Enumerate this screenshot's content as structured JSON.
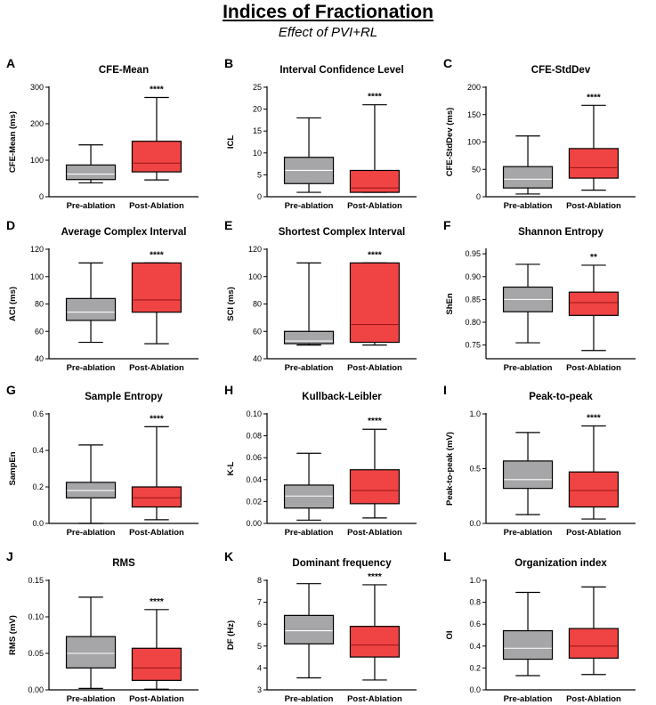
{
  "title": "Indices of Fractionation",
  "subtitle": "Effect of PVI+RL",
  "colors": {
    "pre": "#a6a6a8",
    "post": "#f04444",
    "median_pre": "#ffffff",
    "median_post": "#a01818",
    "line": "#000000"
  },
  "chart_data": [
    {
      "letter": "A",
      "type": "box",
      "title": "CFE-Mean",
      "ylabel": "CFE-Mean (ms)",
      "ylim": [
        0,
        300
      ],
      "ticks": [
        0,
        100,
        200,
        300
      ],
      "tick_labels": [
        "0",
        "100",
        "200",
        "300"
      ],
      "categories": [
        "Pre-ablation",
        "Post-Ablation"
      ],
      "significance": "****",
      "series": [
        {
          "name": "Pre-ablation",
          "min": 38,
          "q1": 47,
          "median": 62,
          "q3": 87,
          "max": 142
        },
        {
          "name": "Post-Ablation",
          "min": 46,
          "q1": 68,
          "median": 92,
          "q3": 152,
          "max": 272
        }
      ]
    },
    {
      "letter": "B",
      "type": "box",
      "title": "Interval Confidence Level",
      "ylabel": "ICL",
      "ylim": [
        0,
        25
      ],
      "ticks": [
        0,
        5,
        10,
        15,
        20,
        25
      ],
      "tick_labels": [
        "0",
        "5",
        "10",
        "15",
        "20",
        "25"
      ],
      "categories": [
        "Pre-ablation",
        "Post-Ablation"
      ],
      "significance": "****",
      "series": [
        {
          "name": "Pre-ablation",
          "min": 1,
          "q1": 3,
          "median": 6,
          "q3": 9,
          "max": 18
        },
        {
          "name": "Post-Ablation",
          "min": 1,
          "q1": 1,
          "median": 2,
          "q3": 6,
          "max": 21
        }
      ]
    },
    {
      "letter": "C",
      "type": "box",
      "title": "CFE-StdDev",
      "ylabel": "CFE-StdDev (ms)",
      "ylim": [
        0,
        200
      ],
      "ticks": [
        0,
        50,
        100,
        150,
        200
      ],
      "tick_labels": [
        "0",
        "50",
        "100",
        "150",
        "200"
      ],
      "categories": [
        "Pre-ablation",
        "Post-Ablation"
      ],
      "significance": "****",
      "series": [
        {
          "name": "Pre-ablation",
          "min": 5,
          "q1": 16,
          "median": 32,
          "q3": 55,
          "max": 111
        },
        {
          "name": "Post-Ablation",
          "min": 12,
          "q1": 34,
          "median": 53,
          "q3": 88,
          "max": 167
        }
      ]
    },
    {
      "letter": "D",
      "type": "box",
      "title": "Average Complex Interval",
      "ylabel": "ACI (ms)",
      "ylim": [
        40,
        120
      ],
      "ticks": [
        40,
        60,
        80,
        100,
        120
      ],
      "tick_labels": [
        "40",
        "60",
        "80",
        "100",
        "120"
      ],
      "categories": [
        "Pre-ablation",
        "Post-Ablation"
      ],
      "significance": "****",
      "series": [
        {
          "name": "Pre-ablation",
          "min": 52,
          "q1": 68,
          "median": 74,
          "q3": 84,
          "max": 110
        },
        {
          "name": "Post-Ablation",
          "min": 51,
          "q1": 74,
          "median": 83,
          "q3": 110,
          "max": 110
        }
      ]
    },
    {
      "letter": "E",
      "type": "box",
      "title": "Shortest Complex Interval",
      "ylabel": "SCI (ms)",
      "ylim": [
        40,
        120
      ],
      "ticks": [
        40,
        60,
        80,
        100,
        120
      ],
      "tick_labels": [
        "40",
        "60",
        "80",
        "100",
        "120"
      ],
      "categories": [
        "Pre-ablation",
        "Post-Ablation"
      ],
      "significance": "****",
      "series": [
        {
          "name": "Pre-ablation",
          "min": 50,
          "q1": 51,
          "median": 53,
          "q3": 60,
          "max": 110
        },
        {
          "name": "Post-Ablation",
          "min": 50,
          "q1": 52,
          "median": 65,
          "q3": 110,
          "max": 110
        }
      ]
    },
    {
      "letter": "F",
      "type": "box",
      "title": "Shannon Entropy",
      "ylabel": "ShEn",
      "ylim": [
        0.72,
        0.96
      ],
      "ticks": [
        0.75,
        0.8,
        0.85,
        0.9,
        0.95
      ],
      "tick_labels": [
        "0.75",
        "0.80",
        "0.85",
        "0.90",
        "0.95"
      ],
      "categories": [
        "Pre-ablation",
        "Post-Ablation"
      ],
      "significance": "**",
      "series": [
        {
          "name": "Pre-ablation",
          "min": 0.755,
          "q1": 0.823,
          "median": 0.85,
          "q3": 0.877,
          "max": 0.927
        },
        {
          "name": "Post-Ablation",
          "min": 0.738,
          "q1": 0.815,
          "median": 0.843,
          "q3": 0.866,
          "max": 0.925
        }
      ]
    },
    {
      "letter": "G",
      "type": "box",
      "title": "Sample Entropy",
      "ylabel": "SampEn",
      "ylim": [
        0,
        0.6
      ],
      "ticks": [
        0,
        0.2,
        0.4,
        0.6
      ],
      "tick_labels": [
        "0.0",
        "0.2",
        "0.4",
        "0.6"
      ],
      "categories": [
        "Pre-ablation",
        "Post-Ablation"
      ],
      "significance": "****",
      "series": [
        {
          "name": "Pre-ablation",
          "min": 0.0,
          "q1": 0.14,
          "median": 0.18,
          "q3": 0.225,
          "max": 0.43
        },
        {
          "name": "Post-Ablation",
          "min": 0.02,
          "q1": 0.09,
          "median": 0.14,
          "q3": 0.2,
          "max": 0.53
        }
      ]
    },
    {
      "letter": "H",
      "type": "box",
      "title": "Kullback-Leibler",
      "ylabel": "K-L",
      "ylim": [
        0,
        0.1
      ],
      "ticks": [
        0,
        0.02,
        0.04,
        0.06,
        0.08,
        0.1
      ],
      "tick_labels": [
        "0.00",
        "0.02",
        "0.04",
        "0.06",
        "0.08",
        "0.10"
      ],
      "categories": [
        "Pre-ablation",
        "Post-Ablation"
      ],
      "significance": "****",
      "series": [
        {
          "name": "Pre-ablation",
          "min": 0.003,
          "q1": 0.014,
          "median": 0.025,
          "q3": 0.035,
          "max": 0.064
        },
        {
          "name": "Post-Ablation",
          "min": 0.005,
          "q1": 0.018,
          "median": 0.03,
          "q3": 0.049,
          "max": 0.086
        }
      ]
    },
    {
      "letter": "I",
      "type": "box",
      "title": "Peak-to-peak",
      "ylabel": "Peak-to-peak (mV)",
      "ylim": [
        0,
        1.0
      ],
      "ticks": [
        0,
        0.5,
        1.0
      ],
      "tick_labels": [
        "0.0",
        "0.5",
        "1.0"
      ],
      "categories": [
        "Pre-ablation",
        "Post-Ablation"
      ],
      "significance": "****",
      "series": [
        {
          "name": "Pre-ablation",
          "min": 0.08,
          "q1": 0.32,
          "median": 0.4,
          "q3": 0.57,
          "max": 0.83
        },
        {
          "name": "Post-Ablation",
          "min": 0.04,
          "q1": 0.15,
          "median": 0.3,
          "q3": 0.47,
          "max": 0.89
        }
      ]
    },
    {
      "letter": "J",
      "type": "box",
      "title": "RMS",
      "ylabel": "RMS (mV)",
      "ylim": [
        0,
        0.15
      ],
      "ticks": [
        0,
        0.05,
        0.1,
        0.15
      ],
      "tick_labels": [
        "0.00",
        "0.05",
        "0.10",
        "0.15"
      ],
      "categories": [
        "Pre-ablation",
        "Post-Ablation"
      ],
      "significance": "****",
      "series": [
        {
          "name": "Pre-ablation",
          "min": 0.002,
          "q1": 0.03,
          "median": 0.05,
          "q3": 0.073,
          "max": 0.127
        },
        {
          "name": "Post-Ablation",
          "min": 0.001,
          "q1": 0.013,
          "median": 0.03,
          "q3": 0.057,
          "max": 0.11
        }
      ]
    },
    {
      "letter": "K",
      "type": "box",
      "title": "Dominant frequency",
      "ylabel": "DF (Hz)",
      "ylim": [
        3,
        8
      ],
      "ticks": [
        3,
        4,
        5,
        6,
        7,
        8
      ],
      "tick_labels": [
        "3",
        "4",
        "5",
        "6",
        "7",
        "8"
      ],
      "categories": [
        "Pre-ablation",
        "Post-Ablation"
      ],
      "significance": "****",
      "series": [
        {
          "name": "Pre-ablation",
          "min": 3.55,
          "q1": 5.1,
          "median": 5.7,
          "q3": 6.4,
          "max": 7.85
        },
        {
          "name": "Post-Ablation",
          "min": 3.45,
          "q1": 4.5,
          "median": 5.05,
          "q3": 5.9,
          "max": 7.8
        }
      ]
    },
    {
      "letter": "L",
      "type": "box",
      "title": "Organization index",
      "ylabel": "OI",
      "ylim": [
        0,
        1.0
      ],
      "ticks": [
        0,
        0.2,
        0.4,
        0.6,
        0.8,
        1.0
      ],
      "tick_labels": [
        "0.0",
        "0.2",
        "0.4",
        "0.6",
        "0.8",
        "1.0"
      ],
      "categories": [
        "Pre-ablation",
        "Post-Ablation"
      ],
      "significance": "",
      "series": [
        {
          "name": "Pre-ablation",
          "min": 0.13,
          "q1": 0.28,
          "median": 0.38,
          "q3": 0.54,
          "max": 0.89
        },
        {
          "name": "Post-Ablation",
          "min": 0.14,
          "q1": 0.29,
          "median": 0.4,
          "q3": 0.56,
          "max": 0.94
        }
      ]
    }
  ]
}
